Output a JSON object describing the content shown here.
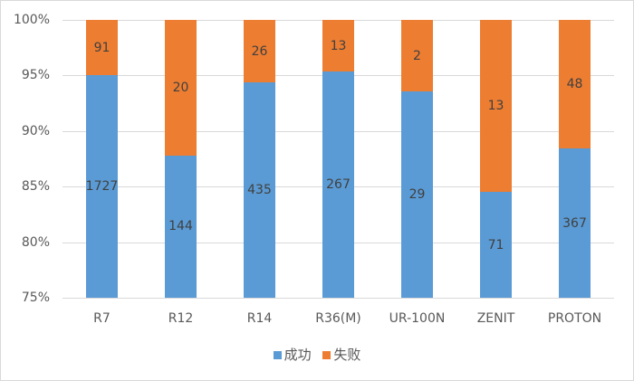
{
  "chart_data": {
    "type": "bar",
    "stacked": "percent",
    "title": "",
    "xlabel": "",
    "ylabel": "",
    "ylim": [
      0.75,
      1.0
    ],
    "y_ticks": [
      "75%",
      "80%",
      "85%",
      "90%",
      "95%",
      "100%"
    ],
    "grid": true,
    "legend_position": "bottom",
    "categories": [
      "R7",
      "R12",
      "R14",
      "R36(M)",
      "UR-100N",
      "ZENIT",
      "PROTON"
    ],
    "series": [
      {
        "name": "成功",
        "color": "#5b9bd5",
        "values": [
          1727,
          144,
          435,
          267,
          29,
          71,
          367
        ]
      },
      {
        "name": "失败",
        "color": "#ed7d31",
        "values": [
          91,
          20,
          26,
          13,
          2,
          13,
          48
        ]
      }
    ]
  },
  "legend": {
    "success_label": "成功",
    "failure_label": "失败"
  }
}
